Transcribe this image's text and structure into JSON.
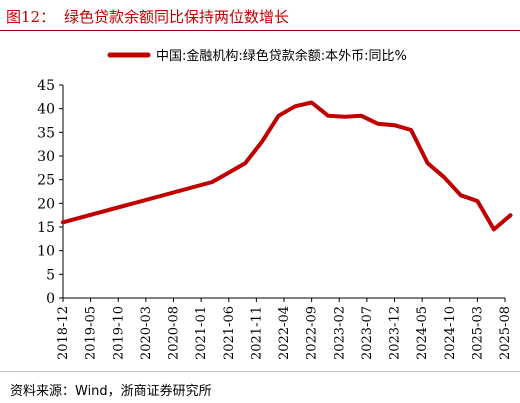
{
  "title": {
    "number": "图12：",
    "text": "绿色贷款余额同比保持两位数增长"
  },
  "source": "资料来源：Wind，浙商证券研究所",
  "colors": {
    "line": "#c00000",
    "title": "#c00000"
  },
  "chart_data": {
    "type": "line",
    "ylim": [
      0,
      45
    ],
    "yticks": [
      0,
      5,
      10,
      15,
      20,
      25,
      30,
      35,
      40,
      45
    ],
    "xticks": [
      "2018-12",
      "2019-05",
      "2019-10",
      "2020-03",
      "2020-08",
      "2021-01",
      "2021-06",
      "2021-11",
      "2022-04",
      "2022-09",
      "2023-02",
      "2023-07",
      "2023-12",
      "2024-05",
      "2024-10",
      "2025-03",
      "2025-08"
    ],
    "legend_position": "top",
    "series": [
      {
        "name": "中国:金融机构:绿色贷款余额:本外币:同比%",
        "points": [
          [
            "2018-12",
            16.0
          ],
          [
            "2021-03",
            24.5
          ],
          [
            "2021-06",
            26.5
          ],
          [
            "2021-09",
            28.5
          ],
          [
            "2021-12",
            33.0
          ],
          [
            "2022-03",
            38.5
          ],
          [
            "2022-06",
            40.5
          ],
          [
            "2022-09",
            41.3
          ],
          [
            "2022-12",
            38.5
          ],
          [
            "2023-03",
            38.3
          ],
          [
            "2023-06",
            38.5
          ],
          [
            "2023-09",
            36.8
          ],
          [
            "2023-12",
            36.5
          ],
          [
            "2024-03",
            35.5
          ],
          [
            "2024-06",
            28.5
          ],
          [
            "2024-09",
            25.5
          ],
          [
            "2024-12",
            21.7
          ],
          [
            "2025-03",
            20.5
          ],
          [
            "2025-06",
            14.5
          ],
          [
            "2025-09",
            17.5
          ]
        ]
      }
    ]
  }
}
